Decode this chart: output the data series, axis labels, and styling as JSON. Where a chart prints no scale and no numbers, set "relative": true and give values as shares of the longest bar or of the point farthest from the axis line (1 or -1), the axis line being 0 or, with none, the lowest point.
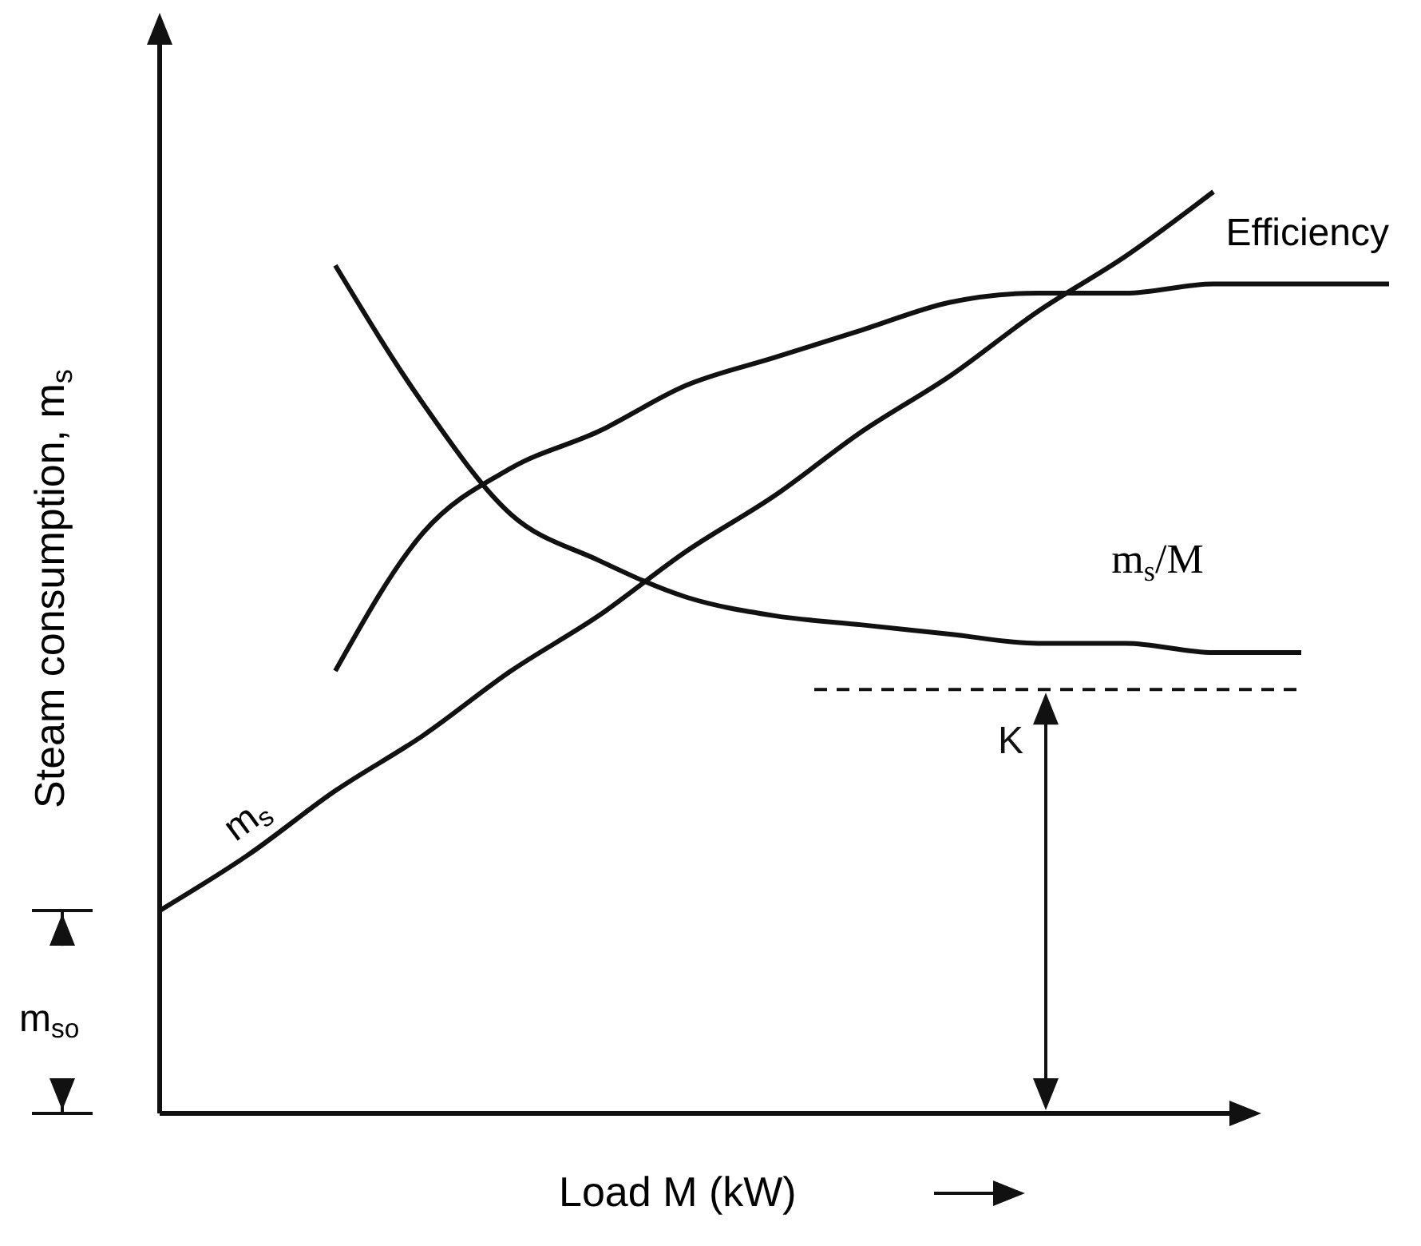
{
  "chart_data": {
    "type": "line",
    "relative": true,
    "xlabel": "Load M (kW)",
    "ylabel": "Steam consumption, m$_{s}$",
    "categories": [
      null,
      null,
      null,
      null,
      null,
      null,
      null,
      null,
      null,
      null,
      null,
      null,
      null,
      null,
      null
    ],
    "series": [
      {
        "name": "m$_{s}$",
        "color": "#111111",
        "values": [
          0.22,
          0.28,
          0.35,
          0.41,
          0.48,
          0.54,
          0.61,
          0.67,
          0.74,
          0.8,
          0.87,
          0.93,
          1.0,
          null,
          null
        ]
      },
      {
        "name": "Efficiency",
        "color": "#111111",
        "values": [
          null,
          null,
          0.48,
          0.63,
          0.7,
          0.74,
          0.79,
          0.82,
          0.85,
          0.88,
          0.89,
          0.89,
          0.9,
          0.9,
          0.9
        ]
      },
      {
        "name": "m$_{s}$/M",
        "color": "#111111",
        "values": [
          null,
          null,
          0.92,
          0.77,
          0.65,
          0.6,
          0.56,
          0.54,
          0.53,
          0.52,
          0.51,
          0.51,
          0.5,
          0.5,
          null
        ]
      }
    ],
    "ref_lines": [
      {
        "axis": "y",
        "value": 0.46,
        "label": "K",
        "line_style": "dashed",
        "color": "#111111"
      }
    ],
    "annotations": [
      "m$_{so}$"
    ],
    "grid": false,
    "marker": "none",
    "line_style": "solid"
  }
}
